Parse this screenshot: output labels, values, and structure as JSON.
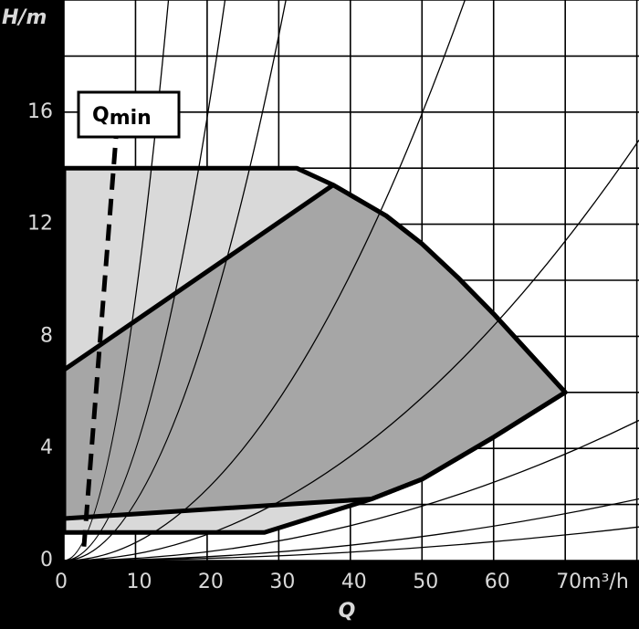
{
  "chart_data": {
    "type": "area",
    "y_label": "H/m",
    "x_label": "Q",
    "annotation": {
      "main": "Q",
      "sub": "min",
      "x": [
        2.8,
        7.3
      ],
      "values": [
        0.5,
        15.2
      ]
    },
    "xlim": [
      0,
      80.3
    ],
    "ylim": [
      0,
      20
    ],
    "xticks": [
      0,
      10,
      20,
      30,
      40,
      50,
      60,
      {
        "value": 70,
        "label": "70m³/h"
      }
    ],
    "yticks": [
      0,
      4,
      8,
      12,
      16
    ],
    "xgrid": [
      0,
      10,
      20,
      30,
      40,
      50,
      60,
      70,
      80
    ],
    "ygrid": [
      0,
      2,
      4,
      6,
      8,
      10,
      12,
      14,
      16,
      18,
      20
    ],
    "regions": [
      {
        "color": "#d9d9d9",
        "x": [
          0,
          32.5,
          37.6,
          45,
          50,
          55,
          60,
          65,
          70,
          60,
          50,
          43,
          28,
          0
        ],
        "values": [
          14,
          14,
          13.4,
          12.3,
          11.3,
          10.1,
          8.8,
          7.4,
          6,
          4.4,
          2.9,
          2.2,
          1,
          1
        ]
      },
      {
        "color": "#a6a6a6",
        "x": [
          0,
          37.6,
          45,
          50,
          55,
          60,
          65,
          70,
          60,
          50,
          43,
          0
        ],
        "values": [
          6.8,
          13.4,
          12.3,
          11.3,
          10.1,
          8.8,
          7.4,
          6,
          4.4,
          2.9,
          2.2,
          1.5
        ]
      }
    ],
    "system_curves": [
      {
        "x": [
          0,
          14.6
        ],
        "values": [
          0,
          20
        ]
      },
      {
        "x": [
          0,
          22.5
        ],
        "values": [
          0,
          20
        ]
      },
      {
        "x": [
          0,
          31
        ],
        "values": [
          0,
          20
        ]
      },
      {
        "x": [
          0,
          56
        ],
        "values": [
          0,
          20
        ]
      },
      {
        "x": [
          0,
          80.3
        ],
        "values": [
          0,
          15
        ]
      },
      {
        "x": [
          0,
          80.3
        ],
        "values": [
          0,
          5
        ]
      },
      {
        "x": [
          0,
          80.3
        ],
        "values": [
          0,
          2.2
        ]
      },
      {
        "x": [
          0,
          80.3
        ],
        "values": [
          0,
          1.2
        ]
      }
    ]
  }
}
